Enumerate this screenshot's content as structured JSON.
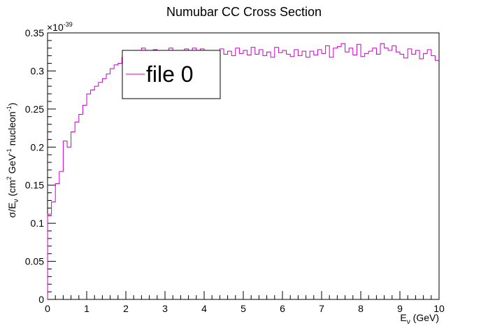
{
  "chart_data": {
    "type": "line",
    "title": "Numubar CC Cross Section",
    "xlabel": "Eν (GeV)",
    "xlabel_main": "E",
    "xlabel_sub": "ν",
    "xlabel_unit": " (GeV)",
    "ylabel_parts": {
      "sigma": "σ/E",
      "nu": "ν",
      "open": " (cm",
      "two": "2",
      "gev": " GeV",
      "minus1a": "-1",
      "nucleon": " nucleon",
      "minus1b": "-1",
      "close": ")"
    },
    "exponent_label": "×10",
    "exponent_power": "-39",
    "xlim": [
      0,
      10
    ],
    "ylim": [
      0,
      0.35
    ],
    "x_ticks": [
      "0",
      "1",
      "2",
      "3",
      "4",
      "5",
      "6",
      "7",
      "8",
      "9",
      "10"
    ],
    "y_ticks": [
      "0",
      "0.05",
      "0.1",
      "0.15",
      "0.2",
      "0.25",
      "0.3",
      "0.35"
    ],
    "bin_width": 0.1,
    "series": [
      {
        "name": "file 0",
        "color": "#cc00cc",
        "values": [
          0.112,
          0.128,
          0.152,
          0.168,
          0.208,
          0.2,
          0.22,
          0.233,
          0.243,
          0.255,
          0.27,
          0.275,
          0.28,
          0.285,
          0.29,
          0.296,
          0.303,
          0.308,
          0.31,
          0.318,
          0.322,
          0.32,
          0.327,
          0.323,
          0.33,
          0.325,
          0.322,
          0.328,
          0.318,
          0.324,
          0.326,
          0.33,
          0.32,
          0.327,
          0.322,
          0.329,
          0.325,
          0.33,
          0.322,
          0.329,
          0.324,
          0.317,
          0.327,
          0.321,
          0.329,
          0.322,
          0.326,
          0.32,
          0.33,
          0.323,
          0.327,
          0.321,
          0.331,
          0.322,
          0.328,
          0.32,
          0.325,
          0.318,
          0.331,
          0.324,
          0.327,
          0.322,
          0.319,
          0.328,
          0.32,
          0.326,
          0.318,
          0.326,
          0.321,
          0.328,
          0.323,
          0.333,
          0.318,
          0.33,
          0.332,
          0.336,
          0.325,
          0.33,
          0.321,
          0.335,
          0.319,
          0.323,
          0.326,
          0.33,
          0.322,
          0.336,
          0.33,
          0.327,
          0.333,
          0.325,
          0.322,
          0.317,
          0.329,
          0.322,
          0.327,
          0.316,
          0.323,
          0.328,
          0.32,
          0.314
        ]
      }
    ],
    "legend": {
      "label": "file 0",
      "placement": "upper-left"
    }
  }
}
